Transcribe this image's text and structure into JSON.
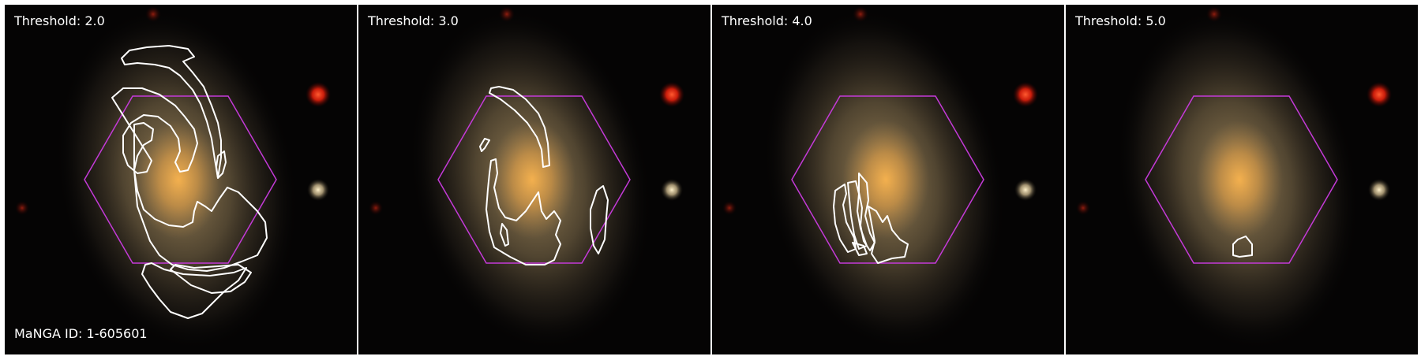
{
  "panels": [
    {
      "threshold_label": "Threshold: 2.0"
    },
    {
      "threshold_label": "Threshold: 3.0"
    },
    {
      "threshold_label": "Threshold: 4.0"
    },
    {
      "threshold_label": "Threshold: 5.0"
    }
  ],
  "manga_id_label": "MaNGA ID: 1-605601",
  "colors": {
    "background": "#050404",
    "galaxy_core": "#e8a040",
    "galaxy_halo": "#9c8660",
    "hexagon": "#c43ad8",
    "contour": "#ffffff",
    "red_star": "#ff2a10",
    "pale_star": "#e8d8b0"
  }
}
